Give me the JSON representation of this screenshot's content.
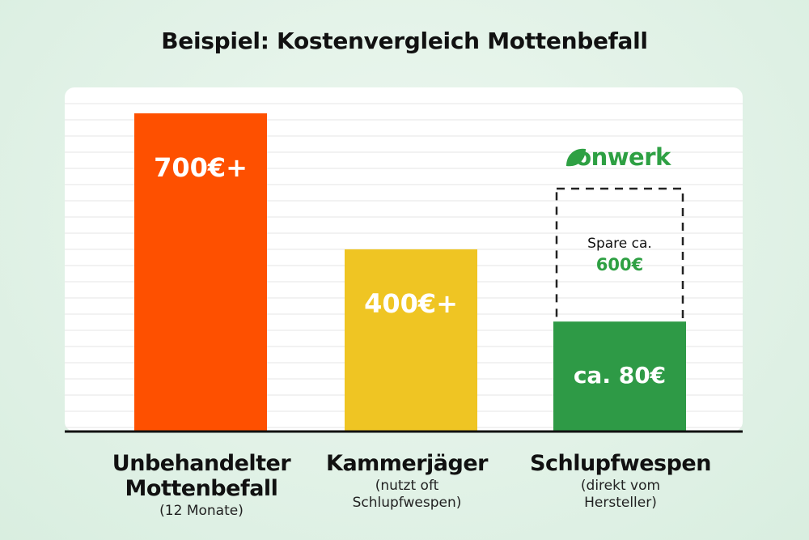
{
  "title": "Beispiel: Kostenvergleich Mottenbefall",
  "colors": {
    "untreated": "#fe5000",
    "exterminator": "#efc523",
    "wasps": "#2e9a46",
    "accent_green": "#2ea043",
    "baseline": "#111111"
  },
  "brand": {
    "logo_text": "onwerk",
    "logo_icon": "leaf-icon"
  },
  "chart_data": {
    "type": "bar",
    "title": "Beispiel: Kostenvergleich Mottenbefall",
    "categories": [
      "Unbehandelter Mottenbefall",
      "Kammerjäger",
      "Schlupfwespen"
    ],
    "values": [
      700,
      400,
      80
    ],
    "unit": "€",
    "value_labels": [
      "700€+",
      "400€+",
      "ca. 80€"
    ],
    "sublabels": [
      "(12 Monate)",
      "(nutzt oft Schlupfwespen)",
      "(direkt vom Hersteller)"
    ],
    "savings": {
      "label": "Spare ca.",
      "value_label": "600€",
      "reference_value": 700
    },
    "ylim": [
      0,
      700
    ],
    "grid": true,
    "xlabel": "",
    "ylabel": ""
  }
}
